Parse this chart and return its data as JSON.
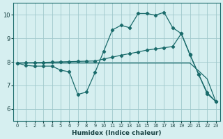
{
  "xlabel": "Humidex (Indice chaleur)",
  "background_color": "#d6eff0",
  "grid_color": "#a0c8cc",
  "line_color": "#1a6b6b",
  "x_ticks": [
    0,
    1,
    2,
    3,
    4,
    5,
    6,
    7,
    8,
    9,
    10,
    11,
    12,
    13,
    14,
    15,
    16,
    17,
    18,
    19,
    20,
    21,
    22,
    23
  ],
  "ylim": [
    5.5,
    10.5
  ],
  "xlim": [
    -0.5,
    23.5
  ],
  "yticks": [
    6,
    7,
    8,
    9,
    10
  ],
  "line1_x": [
    0,
    1,
    2,
    3,
    4,
    5,
    6,
    7,
    8,
    9,
    10,
    11,
    12,
    13,
    14,
    15,
    16,
    17,
    18,
    19,
    20,
    21,
    22,
    23
  ],
  "line1_y": [
    7.95,
    7.85,
    7.82,
    7.82,
    7.82,
    7.65,
    7.58,
    6.62,
    6.72,
    7.55,
    8.45,
    9.35,
    9.55,
    9.45,
    10.05,
    10.05,
    9.98,
    10.1,
    9.45,
    9.2,
    8.3,
    7.48,
    6.7,
    6.32
  ],
  "line2_x": [
    0,
    1,
    2,
    3,
    4,
    5,
    6,
    7,
    8,
    9,
    10,
    11,
    12,
    13,
    14,
    15,
    16,
    17,
    18,
    19,
    20,
    21,
    22,
    23
  ],
  "line2_y": [
    7.95,
    7.96,
    7.97,
    7.98,
    7.99,
    8.0,
    8.01,
    8.02,
    8.03,
    8.04,
    8.12,
    8.2,
    8.28,
    8.35,
    8.42,
    8.5,
    8.55,
    8.6,
    8.65,
    9.2,
    8.32,
    7.48,
    6.65,
    6.32
  ],
  "line3_x": [
    0,
    1,
    2,
    3,
    4,
    5,
    6,
    7,
    8,
    9,
    10,
    11,
    12,
    13,
    14,
    15,
    16,
    17,
    18,
    19,
    20,
    21,
    22,
    23
  ],
  "line3_y": [
    7.95,
    7.95,
    7.95,
    7.95,
    7.95,
    7.95,
    7.95,
    7.95,
    7.95,
    7.95,
    7.95,
    7.95,
    7.95,
    7.95,
    7.95,
    7.95,
    7.95,
    7.95,
    7.95,
    7.95,
    7.95,
    7.62,
    7.28,
    6.32
  ]
}
